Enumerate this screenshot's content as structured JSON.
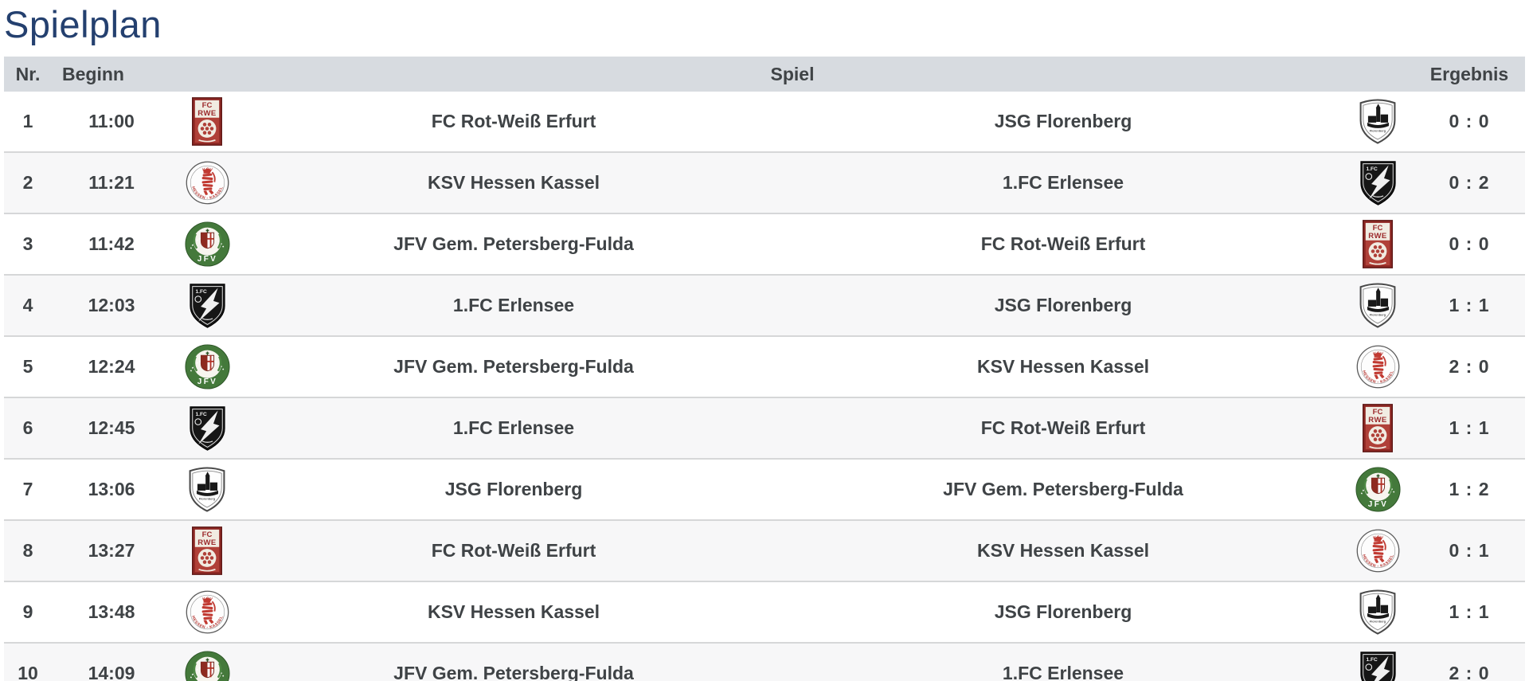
{
  "page": {
    "title": "Spielplan"
  },
  "table": {
    "headers": {
      "nr": "Nr.",
      "beginn": "Beginn",
      "spiel": "Spiel",
      "ergebnis": "Ergebnis"
    },
    "teams": {
      "rwe": {
        "name": "FC Rot-Weiß Erfurt",
        "slug": "fc-rot-weiss-erfurt",
        "logo_text_top": "FC",
        "logo_text_bottom": "RWE"
      },
      "ksv": {
        "name": "KSV Hessen Kassel",
        "slug": "ksv-hessen-kassel",
        "logo_text_top": "KSV",
        "logo_text_bottom": "HESSEN - KASSEL"
      },
      "jfv": {
        "name": "JFV Gem. Petersberg-Fulda",
        "slug": "jfv-gem-petersberg-fulda",
        "logo_text_bottom": "JFV"
      },
      "erlensee": {
        "name": "1.FC Erlensee",
        "slug": "1-fc-erlensee",
        "logo_text_top": "1.FC"
      },
      "florenberg": {
        "name": "JSG Florenberg",
        "slug": "jsg-florenberg",
        "logo_text_bottom": "Florenberg"
      }
    },
    "matches": [
      {
        "nr": "1",
        "beginn": "11:00",
        "home": "rwe",
        "away": "florenberg",
        "result": "0 : 0"
      },
      {
        "nr": "2",
        "beginn": "11:21",
        "home": "ksv",
        "away": "erlensee",
        "result": "0 : 2"
      },
      {
        "nr": "3",
        "beginn": "11:42",
        "home": "jfv",
        "away": "rwe",
        "result": "0 : 0"
      },
      {
        "nr": "4",
        "beginn": "12:03",
        "home": "erlensee",
        "away": "florenberg",
        "result": "1 : 1"
      },
      {
        "nr": "5",
        "beginn": "12:24",
        "home": "jfv",
        "away": "ksv",
        "result": "2 : 0"
      },
      {
        "nr": "6",
        "beginn": "12:45",
        "home": "erlensee",
        "away": "rwe",
        "result": "1 : 1"
      },
      {
        "nr": "7",
        "beginn": "13:06",
        "home": "florenberg",
        "away": "jfv",
        "result": "1 : 2"
      },
      {
        "nr": "8",
        "beginn": "13:27",
        "home": "rwe",
        "away": "ksv",
        "result": "0 : 1"
      },
      {
        "nr": "9",
        "beginn": "13:48",
        "home": "ksv",
        "away": "florenberg",
        "result": "1 : 1"
      },
      {
        "nr": "10",
        "beginn": "14:09",
        "home": "jfv",
        "away": "erlensee",
        "result": "2 : 0"
      }
    ]
  },
  "colors": {
    "title": "#24406F",
    "header_bg": "#D7DBE0",
    "row_stripe": "#F7F7F8",
    "row_border": "#D6D7D8",
    "text": "#3F4346",
    "rwe_red": "#B04038",
    "ksv_red": "#C13A32",
    "jfv_green": "#44793B",
    "black_white_clubs": "#161616"
  }
}
